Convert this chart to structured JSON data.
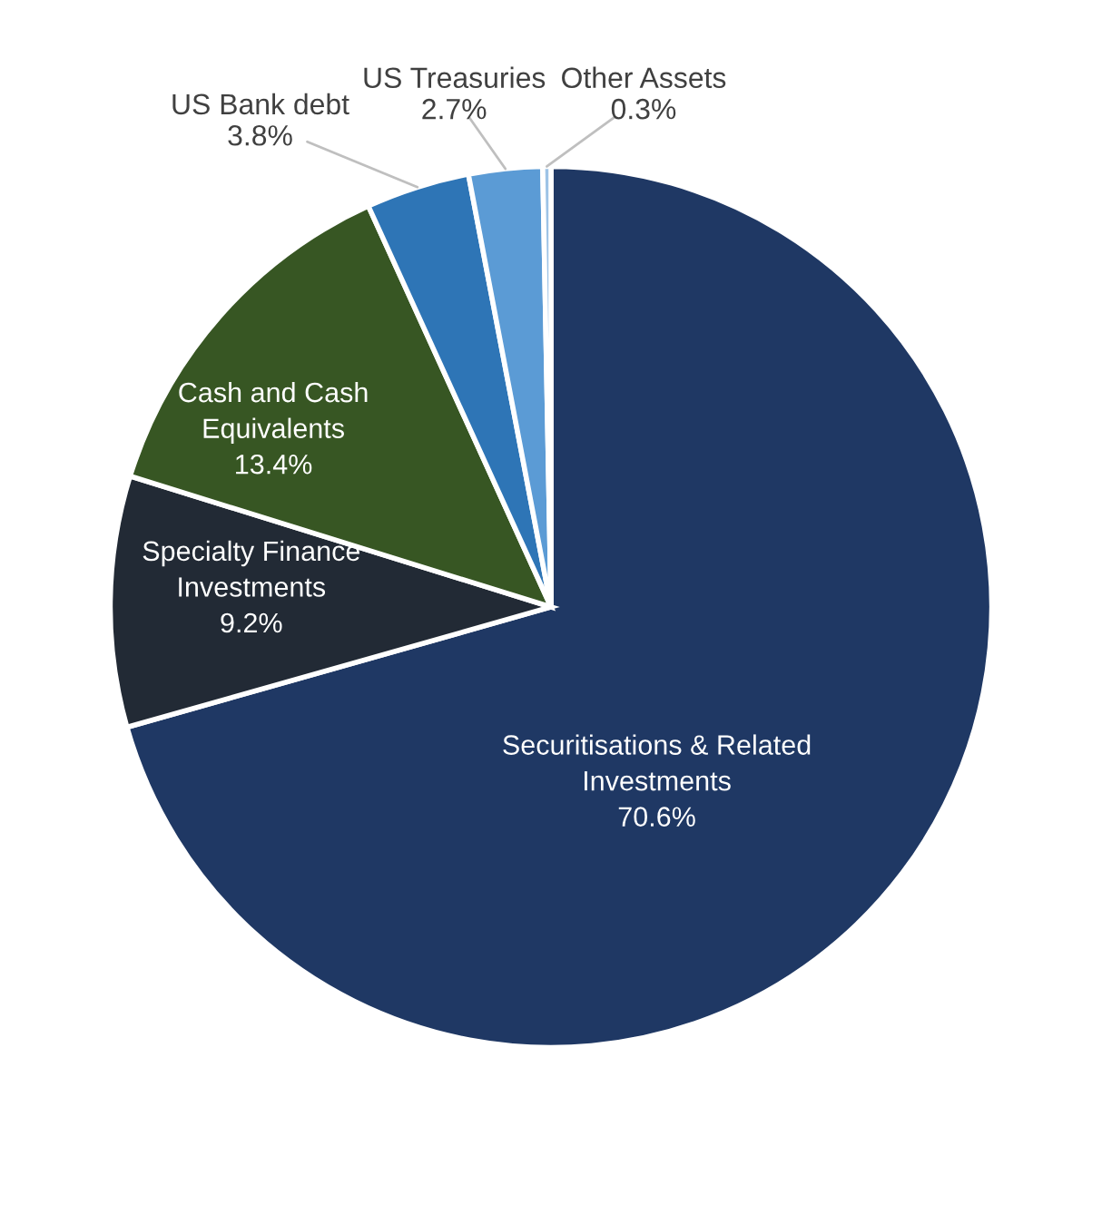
{
  "chart_data": {
    "type": "pie",
    "categories": [
      "Securitisations & Related\nInvestments",
      "Specialty Finance\nInvestments",
      "Cash and Cash\nEquivalents",
      "US Bank debt",
      "US Treasuries",
      "Other Assets"
    ],
    "values": [
      70.6,
      9.2,
      13.4,
      3.8,
      2.7,
      0.3
    ],
    "value_labels": [
      "70.6%",
      "9.2%",
      "13.4%",
      "3.8%",
      "2.7%",
      "0.3%"
    ],
    "colors": [
      "#1f3864",
      "#222a35",
      "#375623",
      "#2e75b6",
      "#5b9bd5",
      "#9dc3e6"
    ]
  }
}
